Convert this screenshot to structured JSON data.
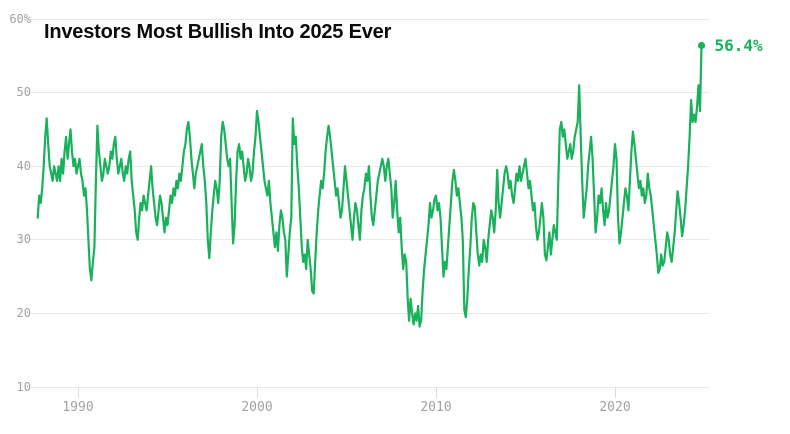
{
  "colors": {
    "background": "#ffffff",
    "line": "#1ab15c",
    "annotation": "#1ab15c",
    "title": "#0b0b0b",
    "axis_label": "#a2a2a2",
    "gridline": "#e9e9e9",
    "tick_mark": "#dcdcdc"
  },
  "chart_data": {
    "type": "line",
    "title": "Investors Most Bullish Into 2025 Ever",
    "xlabel": "",
    "ylabel": "",
    "unit": "%",
    "frequency": "monthly",
    "start_month": "1987-10",
    "end_month": "2024-11",
    "ylim": [
      10,
      60
    ],
    "grid": "horizontal",
    "legend_position": "none",
    "annotation": {
      "label": "56.4%",
      "value": 56.4,
      "position": "end-of-line"
    },
    "yticks": [
      {
        "value": 60,
        "label": "60%"
      },
      {
        "value": 50,
        "label": "50"
      },
      {
        "value": 40,
        "label": "40"
      },
      {
        "value": 30,
        "label": "30"
      },
      {
        "value": 20,
        "label": "20"
      },
      {
        "value": 10,
        "label": "10"
      }
    ],
    "xticks": [
      {
        "year": 1990,
        "label": "1990"
      },
      {
        "year": 2000,
        "label": "2000"
      },
      {
        "year": 2010,
        "label": "2010"
      },
      {
        "year": 2020,
        "label": "2020"
      }
    ],
    "values": [
      33,
      36,
      35,
      37,
      40,
      44,
      46.5,
      43,
      40,
      39,
      38,
      40,
      39,
      38,
      40,
      38,
      41,
      39,
      42,
      44,
      41,
      43,
      45,
      42,
      40,
      41,
      39,
      40,
      41,
      39,
      38,
      36,
      37,
      34,
      30,
      26,
      24.5,
      27,
      29,
      38,
      45.5,
      42,
      40,
      38,
      39,
      41,
      40,
      39,
      40,
      42,
      41,
      43,
      44,
      41,
      39,
      40,
      41,
      39,
      38,
      40,
      39,
      41,
      42,
      38,
      36,
      34,
      31,
      30,
      33,
      35,
      34,
      36,
      35,
      34,
      36,
      38,
      40,
      37,
      35,
      33,
      32,
      34,
      36,
      35,
      33,
      31,
      33,
      32,
      34,
      36,
      35,
      37,
      36,
      38,
      37,
      39,
      38,
      40,
      42,
      43,
      45,
      46,
      44,
      41,
      39,
      37,
      39,
      40,
      41,
      42,
      43,
      40,
      38,
      35,
      30,
      27.5,
      31,
      34,
      36,
      38,
      37,
      35,
      38,
      44,
      46,
      45,
      43,
      41,
      40,
      41,
      35,
      29.5,
      32,
      38,
      42,
      43,
      41,
      42,
      40,
      38,
      39,
      41,
      40,
      38,
      39,
      42,
      44,
      47.5,
      46,
      44,
      42,
      40,
      38,
      37,
      36,
      38,
      35,
      33,
      31,
      29,
      31,
      28.5,
      32,
      34,
      33,
      31,
      30,
      25,
      28,
      31,
      33,
      46.5,
      43,
      44,
      40,
      37,
      33,
      29,
      27,
      28,
      26,
      30,
      28,
      26,
      23,
      22.7,
      27,
      31,
      34,
      36,
      38,
      37,
      39,
      42,
      44,
      45.5,
      44,
      42,
      40,
      38,
      36,
      37,
      35,
      33,
      34,
      37,
      40,
      38,
      36,
      34,
      32,
      30,
      33,
      35,
      34,
      32,
      30,
      34,
      36,
      37,
      39,
      38,
      40,
      36,
      33,
      32,
      34,
      36,
      38,
      39,
      40,
      41,
      40,
      38,
      40,
      41,
      39,
      37,
      33,
      35,
      38,
      34,
      31,
      33,
      29,
      26,
      28,
      27,
      22,
      19,
      22,
      20,
      18.5,
      20,
      19,
      21,
      18.2,
      19,
      23,
      26,
      28,
      30,
      32,
      35,
      33,
      34,
      35.5,
      36,
      34,
      35,
      33,
      29,
      25,
      27,
      26,
      29,
      32,
      35,
      38,
      39.5,
      38,
      36,
      37,
      35,
      33,
      30,
      20.5,
      19.5,
      22,
      26,
      29,
      33,
      35,
      34.5,
      31,
      28,
      26.5,
      28,
      27,
      30,
      29,
      27,
      30,
      32,
      34,
      33,
      31,
      34,
      39.5,
      35,
      33,
      35,
      37,
      39,
      40,
      39,
      37,
      38,
      36,
      35,
      37,
      39,
      38,
      40,
      38,
      39,
      40,
      41,
      39,
      37,
      38,
      36,
      34,
      35,
      32,
      30,
      31,
      33,
      35,
      33,
      28,
      27.2,
      29,
      31,
      28,
      30,
      32,
      31,
      30,
      38,
      45,
      46,
      44,
      45,
      43,
      41,
      42,
      43,
      41,
      42,
      44,
      45,
      46,
      51,
      44,
      38,
      33,
      35,
      37,
      40,
      42,
      44,
      41,
      36,
      31,
      33,
      36,
      35,
      37,
      34,
      32,
      35,
      33,
      34,
      36,
      38,
      40,
      43,
      41,
      33,
      29.5,
      31,
      33,
      35,
      37,
      36,
      34,
      38,
      42,
      44.7,
      43,
      41,
      39,
      37,
      38,
      36,
      37,
      35,
      36,
      39,
      37,
      36,
      34,
      32,
      30,
      28,
      25.5,
      26,
      28,
      26.5,
      27,
      29,
      31,
      30,
      28,
      27,
      29,
      31,
      34,
      36.6,
      35,
      33,
      30.5,
      32,
      34,
      37,
      40,
      44,
      49,
      46,
      47,
      46,
      48,
      51,
      47.5,
      56.4
    ]
  }
}
